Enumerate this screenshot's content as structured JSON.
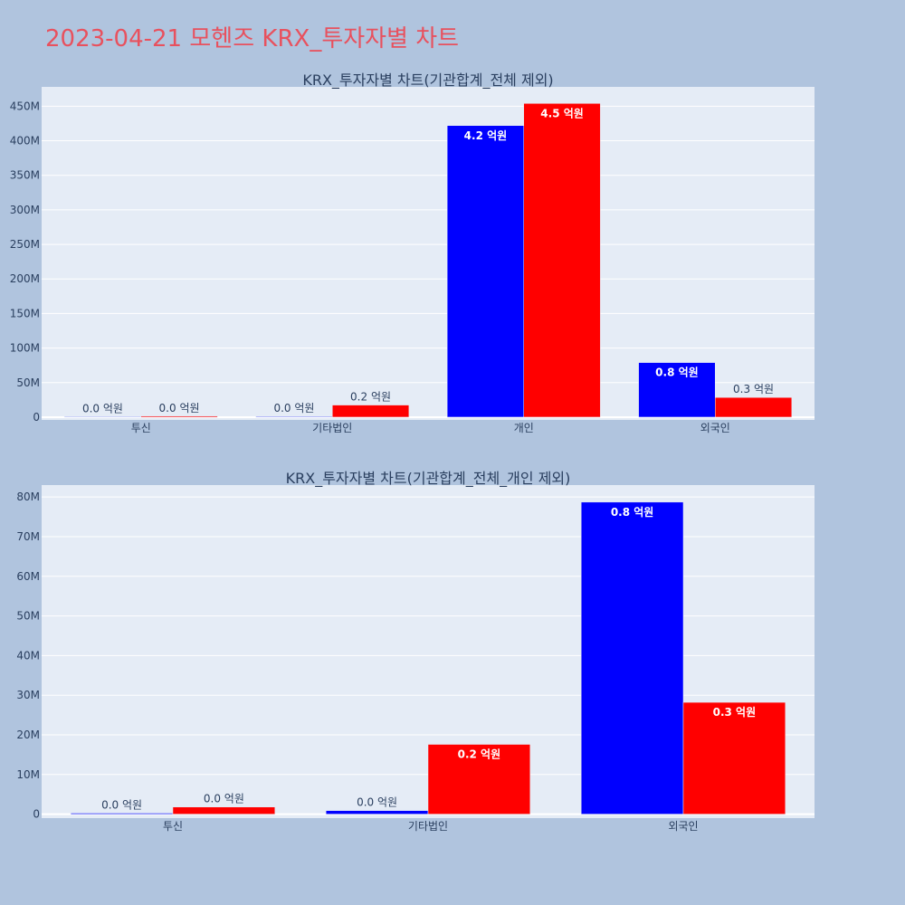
{
  "page": {
    "title": "2023-04-21 모헨즈 KRX_투자자별 차트"
  },
  "colors": {
    "buy": "#0000ff",
    "sell": "#ff0000"
  },
  "chart_data": [
    {
      "type": "bar",
      "title": "KRX_투자자별 차트(기관합계_전체 제외)",
      "categories": [
        "투신",
        "기타법인",
        "개인",
        "외국인"
      ],
      "series": [
        {
          "values": [
            0,
            1000000,
            422000000,
            79000000
          ],
          "labels": [
            "0.0 억원",
            "0.0 억원",
            "4.2 억원",
            "0.8 억원"
          ]
        },
        {
          "values": [
            1500000,
            17500000,
            454000000,
            28500000
          ],
          "labels": [
            "0.0 억원",
            "0.2 억원",
            "4.5 억원",
            "0.3 억원"
          ]
        }
      ],
      "yticks": [
        0,
        50000000,
        100000000,
        150000000,
        200000000,
        250000000,
        300000000,
        350000000,
        400000000,
        450000000
      ],
      "ytick_labels": [
        "0",
        "50M",
        "100M",
        "150M",
        "200M",
        "250M",
        "300M",
        "350M",
        "400M",
        "450M"
      ],
      "ylim": [
        -4000000,
        478000000
      ],
      "grid": true
    },
    {
      "type": "bar",
      "title": "KRX_투자자별 차트(기관합계_전체_개인 제외)",
      "categories": [
        "투신",
        "기타법인",
        "외국인"
      ],
      "series": [
        {
          "values": [
            250000,
            900000,
            78700000
          ],
          "labels": [
            "0.0 억원",
            "0.0 억원",
            "0.8 억원"
          ]
        },
        {
          "values": [
            1800000,
            17600000,
            28200000
          ],
          "labels": [
            "0.0 억원",
            "0.2 억원",
            "0.3 억원"
          ]
        }
      ],
      "yticks": [
        0,
        10000000,
        20000000,
        30000000,
        40000000,
        50000000,
        60000000,
        70000000,
        80000000
      ],
      "ytick_labels": [
        "0",
        "10M",
        "20M",
        "30M",
        "40M",
        "50M",
        "60M",
        "70M",
        "80M"
      ],
      "ylim": [
        -1000000,
        83000000
      ],
      "grid": true
    }
  ]
}
